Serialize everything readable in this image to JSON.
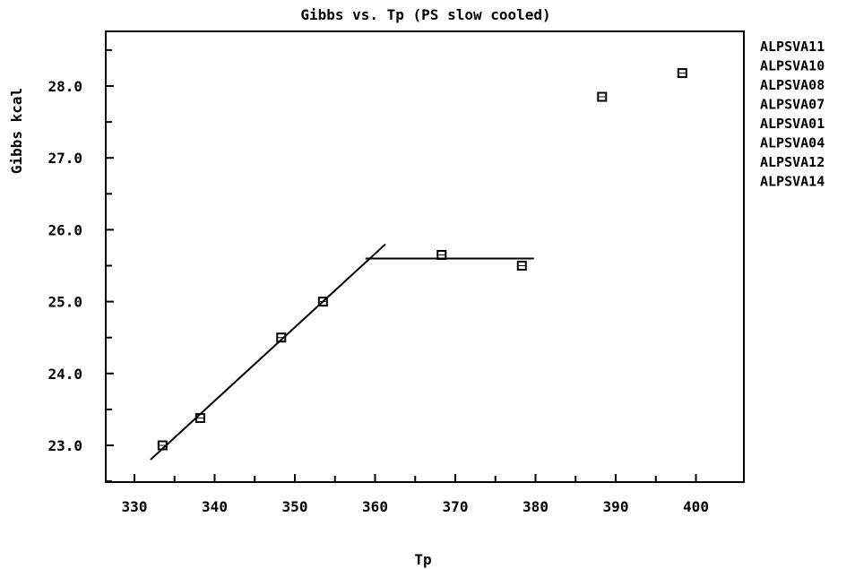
{
  "chart_data": {
    "type": "scatter",
    "title": "Gibbs vs. Tp (PS slow cooled)",
    "xlabel": "Tp",
    "ylabel": "Gibbs kcal",
    "xlim": [
      328,
      405
    ],
    "ylim": [
      22.5,
      29.0
    ],
    "x_ticks": [
      330,
      340,
      350,
      360,
      370,
      380,
      390,
      400
    ],
    "x_tick_labels": [
      "330",
      "340",
      "350",
      "360",
      "370",
      "380",
      "390",
      "400"
    ],
    "y_ticks": [
      23.0,
      24.0,
      25.0,
      26.0,
      27.0,
      28.0
    ],
    "y_tick_labels": [
      "23.0",
      "24.0",
      "25.0",
      "26.0",
      "27.0",
      "28.0"
    ],
    "grid": false,
    "legend_position": "right",
    "legend": [
      "ALPSVA11",
      "ALPSVA10",
      "ALPSVA08",
      "ALPSVA07",
      "ALPSVA01",
      "ALPSVA04",
      "ALPSVA12",
      "ALPSVA14"
    ],
    "marker": "square",
    "points": [
      {
        "x": 333.5,
        "y": 23.0
      },
      {
        "x": 338.2,
        "y": 23.38
      },
      {
        "x": 348.3,
        "y": 24.5
      },
      {
        "x": 353.5,
        "y": 25.0
      },
      {
        "x": 368.3,
        "y": 25.65
      },
      {
        "x": 378.3,
        "y": 25.5
      },
      {
        "x": 388.3,
        "y": 27.85
      },
      {
        "x": 398.3,
        "y": 28.18
      }
    ],
    "fit_lines": [
      {
        "points": [
          [
            332.0,
            22.8
          ],
          [
            361.3,
            25.8
          ]
        ]
      },
      {
        "points": [
          [
            358.8,
            25.6
          ],
          [
            379.8,
            25.6
          ]
        ]
      }
    ]
  }
}
